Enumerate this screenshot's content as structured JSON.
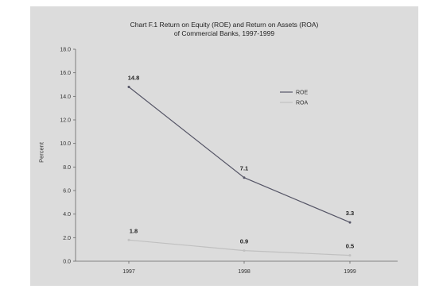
{
  "chart_data": {
    "type": "line",
    "title": "Chart F.1 Return on Equity (ROE) and Return on Assets (ROA)",
    "subtitle": "of Commercial Banks, 1997-1999",
    "xlabel": "",
    "ylabel": "Percent",
    "categories": [
      "1997",
      "1998",
      "1999"
    ],
    "ylim": [
      0,
      18
    ],
    "yticks": [
      "0.0",
      "2.0",
      "4.0",
      "6.0",
      "8.0",
      "10.0",
      "12.0",
      "14.0",
      "16.0",
      "18.0"
    ],
    "series": [
      {
        "name": "ROE",
        "values": [
          14.8,
          7.1,
          3.3
        ],
        "labels": [
          "14.8",
          "7.1",
          "3.3"
        ],
        "color": "#555566"
      },
      {
        "name": "ROA",
        "values": [
          1.8,
          0.9,
          0.5
        ],
        "labels": [
          "1.8",
          "0.9",
          "0.5"
        ],
        "color": "#c0c0c0"
      }
    ],
    "grid": false,
    "legend_position": "top-right",
    "background": "#dcdcdc"
  }
}
